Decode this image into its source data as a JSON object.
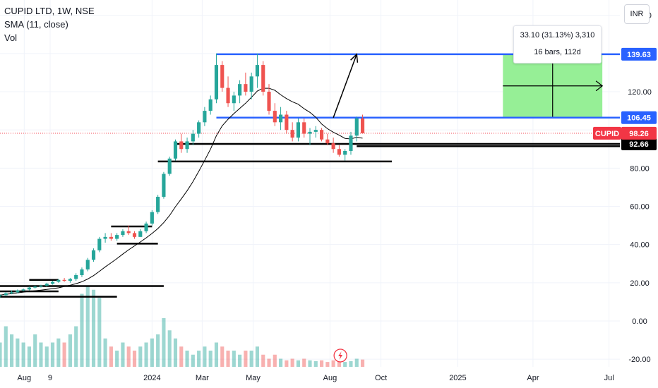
{
  "legend": {
    "symbol": "CUPID LTD, 1W, NSE",
    "indicator": "SMA (11, close)",
    "volume": "Vol"
  },
  "currency_button": "INR",
  "measure_box": {
    "line1": "33.10 (31.13%) 3,310",
    "line2": "16 bars, 112d"
  },
  "colors": {
    "up": "#26a69a",
    "down": "#ef5350",
    "level_line": "#2962ff",
    "support_line": "#000000",
    "target_zone": "#90ee90",
    "sma": "#000000",
    "price_tag": "#f23645"
  },
  "chart_data": {
    "type": "candlestick",
    "title": "CUPID LTD, 1W, NSE",
    "y_axis": {
      "ticks": [
        -20,
        0,
        20,
        40,
        60,
        80,
        100,
        120,
        140,
        160
      ],
      "tick_labels": [
        "-20.00",
        "0.00",
        "20.00",
        "40.00",
        "60.00",
        "80.00",
        "100.00",
        "120.00",
        "140.00",
        "160.00"
      ],
      "ylim": [
        -24,
        168
      ]
    },
    "x_axis": {
      "labels": [
        "Aug",
        "9",
        "2024",
        "Mar",
        "May",
        "Aug",
        "Oct",
        "2025",
        "Apr",
        "Jul"
      ],
      "label_dates": [
        "2023-08-01",
        "2023-09-01",
        "2024-01-01",
        "2024-03-01",
        "2024-05-01",
        "2024-08-01",
        "2024-10-01",
        "2025-01-01",
        "2025-04-01",
        "2025-07-01"
      ],
      "range": [
        "2023-07-03",
        "2025-07-14"
      ]
    },
    "candles": {
      "start": "2023-07-03",
      "interval": "1W",
      "ohlc": [
        [
          13,
          14,
          12,
          13.5
        ],
        [
          13.5,
          15,
          13,
          14.5
        ],
        [
          14.5,
          16,
          14,
          15
        ],
        [
          15,
          16.5,
          14.5,
          16
        ],
        [
          16,
          17,
          15.5,
          16.5
        ],
        [
          16.5,
          18,
          16,
          17.5
        ],
        [
          17.5,
          18.5,
          17,
          18
        ],
        [
          18,
          19,
          17.5,
          18.5
        ],
        [
          18.5,
          20,
          18,
          19.5
        ],
        [
          19.5,
          21,
          19,
          20.5
        ],
        [
          20.5,
          22,
          20,
          21.5
        ],
        [
          21.5,
          22.5,
          20.5,
          21
        ],
        [
          21,
          22.5,
          20,
          22
        ],
        [
          22,
          25,
          21,
          24
        ],
        [
          24,
          28,
          23,
          27
        ],
        [
          27,
          33,
          26,
          32
        ],
        [
          32,
          38,
          31,
          37
        ],
        [
          37,
          44,
          36,
          43
        ],
        [
          43,
          46,
          41,
          44
        ],
        [
          44,
          46,
          42,
          43
        ],
        [
          43,
          46,
          42,
          45
        ],
        [
          45,
          48,
          44,
          47
        ],
        [
          47,
          50,
          45,
          46
        ],
        [
          46,
          47,
          43,
          44
        ],
        [
          44,
          48,
          44,
          47
        ],
        [
          47,
          52,
          46,
          51
        ],
        [
          51,
          58,
          50,
          57
        ],
        [
          57,
          66,
          56,
          65
        ],
        [
          65,
          78,
          64,
          77
        ],
        [
          77,
          86,
          76,
          85
        ],
        [
          85,
          95,
          84,
          94
        ],
        [
          94,
          98,
          88,
          90
        ],
        [
          90,
          96,
          88,
          94
        ],
        [
          94,
          100,
          92,
          98
        ],
        [
          98,
          105,
          96,
          104
        ],
        [
          104,
          112,
          102,
          110
        ],
        [
          110,
          118,
          108,
          116
        ],
        [
          116,
          140,
          114,
          134
        ],
        [
          134,
          136,
          120,
          122
        ],
        [
          122,
          128,
          112,
          114
        ],
        [
          114,
          120,
          110,
          118
        ],
        [
          118,
          126,
          114,
          124
        ],
        [
          124,
          130,
          118,
          120
        ],
        [
          120,
          130,
          116,
          128
        ],
        [
          128,
          140,
          122,
          134
        ],
        [
          134,
          136,
          118,
          120
        ],
        [
          120,
          124,
          108,
          110
        ],
        [
          110,
          114,
          102,
          104
        ],
        [
          104,
          112,
          100,
          108
        ],
        [
          108,
          110,
          98,
          100
        ],
        [
          100,
          104,
          94,
          96
        ],
        [
          96,
          106,
          94,
          104
        ],
        [
          104,
          106,
          96,
          98
        ],
        [
          98,
          101,
          92,
          99
        ],
        [
          99,
          102,
          96,
          100
        ],
        [
          100,
          101,
          94,
          95
        ],
        [
          95,
          98,
          92,
          93
        ],
        [
          93,
          96,
          88,
          90
        ],
        [
          90,
          92,
          86,
          87
        ],
        [
          87,
          90,
          84,
          89
        ],
        [
          89,
          99,
          87,
          97
        ],
        [
          97,
          107,
          94,
          106
        ],
        [
          106,
          108,
          98,
          98.26
        ]
      ]
    },
    "volume_relative": [
      0.3,
      0.5,
      0.4,
      0.35,
      0.3,
      0.25,
      0.4,
      0.3,
      0.25,
      0.3,
      0.35,
      0.3,
      0.4,
      0.5,
      0.9,
      1.0,
      0.95,
      0.85,
      0.35,
      0.25,
      0.2,
      0.3,
      0.25,
      0.2,
      0.25,
      0.3,
      0.35,
      0.4,
      0.6,
      0.45,
      0.35,
      0.25,
      0.2,
      0.15,
      0.2,
      0.25,
      0.2,
      0.3,
      0.25,
      0.2,
      0.2,
      0.15,
      0.2,
      0.2,
      0.25,
      0.15,
      0.1,
      0.15,
      0.1,
      0.08,
      0.1,
      0.08,
      0.1,
      0.08,
      0.07,
      0.08,
      0.06,
      0.08,
      0.07,
      0.06,
      0.07,
      0.1,
      0.09
    ],
    "sma": {
      "name": "SMA (11, close)",
      "period": 11
    },
    "horizontal_levels": [
      {
        "label": "139.63",
        "value": 139.63,
        "type": "blue"
      },
      {
        "label": "106.45",
        "value": 106.45,
        "type": "blue"
      },
      {
        "label": "92.66",
        "value": 92.66,
        "type": "black"
      }
    ],
    "last_price": {
      "symbol": "CUPID",
      "value": "98.26"
    },
    "support_lines": [
      {
        "value": 83.5,
        "from": "2024-01-08",
        "to": "2024-10-14"
      },
      {
        "value": 91.5,
        "from": "2024-09-02",
        "to": "2025-07-14"
      },
      {
        "value": 49.5,
        "from": "2023-11-13",
        "to": "2024-01-01"
      },
      {
        "value": 40.5,
        "from": "2023-11-20",
        "to": "2024-01-08"
      },
      {
        "value": 21.5,
        "from": "2023-08-07",
        "to": "2023-09-11"
      },
      {
        "value": 18.3,
        "from": "2023-07-03",
        "to": "2024-01-15"
      },
      {
        "value": 15.5,
        "from": "2023-07-03",
        "to": "2023-09-11"
      },
      {
        "value": 12.7,
        "from": "2023-07-03",
        "to": "2023-11-20"
      }
    ],
    "target_zone": {
      "from": "2025-02-24",
      "to": "2025-06-23",
      "low": 106.45,
      "high": 139.63
    },
    "projection_arrow": {
      "from": [
        "2024-08-05",
        106.45
      ],
      "to": [
        "2024-09-02",
        139.63
      ]
    }
  }
}
